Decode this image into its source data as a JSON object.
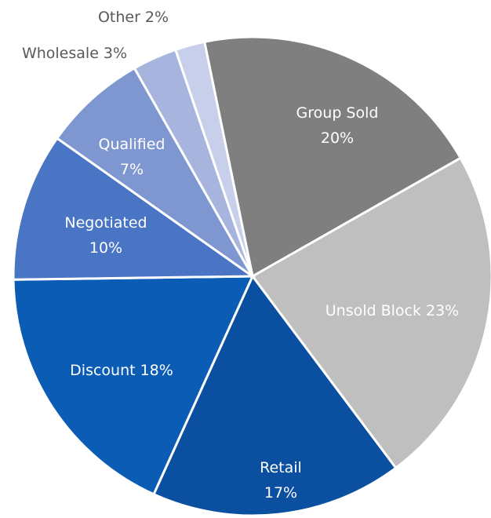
{
  "chart_data": {
    "type": "pie",
    "categories": [
      "Group Sold",
      "Unsold Block",
      "Retail",
      "Discount",
      "Negotiated",
      "Qualified",
      "Wholesale",
      "Other"
    ],
    "values": [
      20,
      23,
      17,
      18,
      10,
      7,
      3,
      2
    ],
    "value_labels": [
      "20%",
      "23%",
      "17%",
      "18%",
      "10%",
      "7%",
      "3%",
      "2%"
    ],
    "colors": [
      "#7f7f7f",
      "#bfbfbf",
      "#0a4fa0",
      "#0b5cb5",
      "#4a74c4",
      "#7f97d0",
      "#a6b4de",
      "#c7cfea"
    ]
  }
}
